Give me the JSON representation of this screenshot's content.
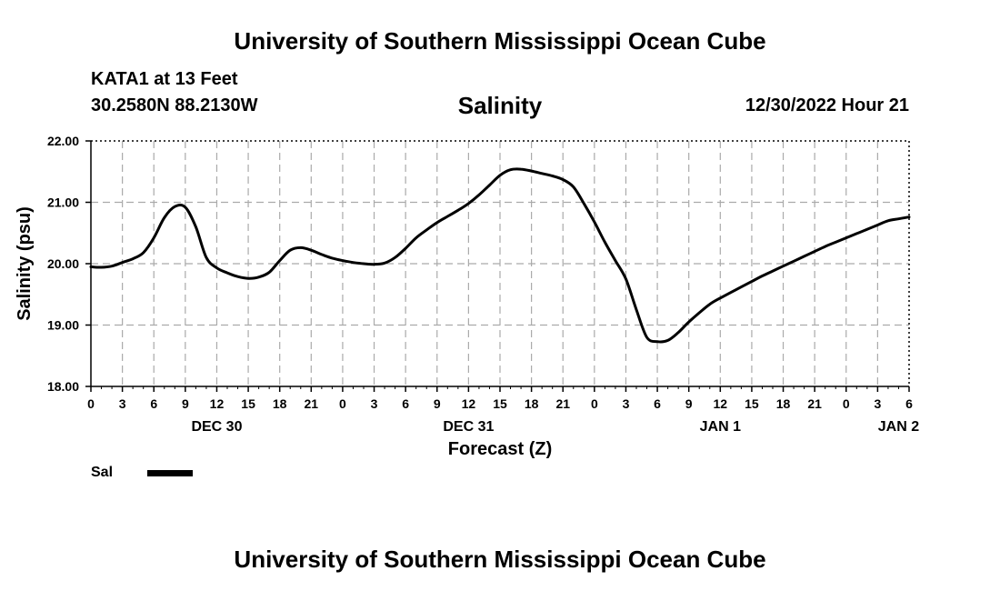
{
  "header": {
    "title": "University of Southern Mississippi Ocean Cube",
    "station": "KATA1 at 13 Feet",
    "coordinates": "30.2580N  88.2130W",
    "chart_title": "Salinity",
    "timestamp": "12/30/2022 Hour 21"
  },
  "footer": {
    "title": "University of Southern Mississippi Ocean Cube"
  },
  "legend": {
    "label": "Sal"
  },
  "colors": {
    "line": "#000000",
    "grid": "#aaaaaa",
    "background": "#ffffff"
  },
  "chart_data": {
    "type": "line",
    "title": "Salinity",
    "xlabel": "Forecast (Z)",
    "ylabel": "Salinity (psu)",
    "xlim": [
      0,
      78
    ],
    "ylim": [
      18.0,
      22.0
    ],
    "y_ticks": [
      "18.00",
      "19.00",
      "20.00",
      "21.00",
      "22.00"
    ],
    "x_ticks": [
      "0",
      "3",
      "6",
      "9",
      "12",
      "15",
      "18",
      "21",
      "0",
      "3",
      "6",
      "9",
      "12",
      "15",
      "18",
      "21",
      "0",
      "3",
      "6",
      "9",
      "12",
      "15",
      "18",
      "21",
      "0",
      "3",
      "6"
    ],
    "date_labels": [
      {
        "label": "DEC 30",
        "hour": 12
      },
      {
        "label": "DEC 31",
        "hour": 36
      },
      {
        "label": "JAN 1",
        "hour": 60
      },
      {
        "label": "JAN 2",
        "hour": 77
      }
    ],
    "grid": true,
    "series": [
      {
        "name": "Sal",
        "x": [
          0,
          1,
          2,
          3,
          4,
          5,
          6,
          7,
          8,
          9,
          10,
          11,
          12,
          13,
          14,
          15,
          16,
          17,
          18,
          19,
          20,
          21,
          22,
          23,
          24,
          25,
          26,
          27,
          28,
          29,
          30,
          31,
          32,
          33,
          34,
          35,
          36,
          37,
          38,
          39,
          40,
          41,
          42,
          43,
          44,
          45,
          46,
          47,
          48,
          49,
          50,
          51,
          52,
          53,
          54,
          55,
          56,
          57,
          58,
          59,
          60,
          61,
          62,
          63,
          64,
          65,
          66,
          67,
          68,
          69,
          70,
          71,
          72,
          73,
          74,
          75,
          76,
          77,
          78
        ],
        "values": [
          19.95,
          19.94,
          19.96,
          20.02,
          20.08,
          20.18,
          20.42,
          20.75,
          20.93,
          20.92,
          20.6,
          20.1,
          19.93,
          19.85,
          19.79,
          19.76,
          19.78,
          19.86,
          20.05,
          20.22,
          20.26,
          20.22,
          20.15,
          20.09,
          20.05,
          20.02,
          20.0,
          19.99,
          20.01,
          20.1,
          20.25,
          20.42,
          20.55,
          20.67,
          20.77,
          20.87,
          20.98,
          21.12,
          21.28,
          21.44,
          21.53,
          21.54,
          21.51,
          21.47,
          21.43,
          21.37,
          21.25,
          20.98,
          20.68,
          20.35,
          20.05,
          19.75,
          19.25,
          18.8,
          18.73,
          18.75,
          18.88,
          19.05,
          19.2,
          19.34,
          19.44,
          19.53,
          19.62,
          19.71,
          19.8,
          19.88,
          19.96,
          20.04,
          20.12,
          20.2,
          20.28,
          20.35,
          20.42,
          20.49,
          20.56,
          20.63,
          20.7,
          20.73,
          20.76
        ]
      }
    ]
  }
}
